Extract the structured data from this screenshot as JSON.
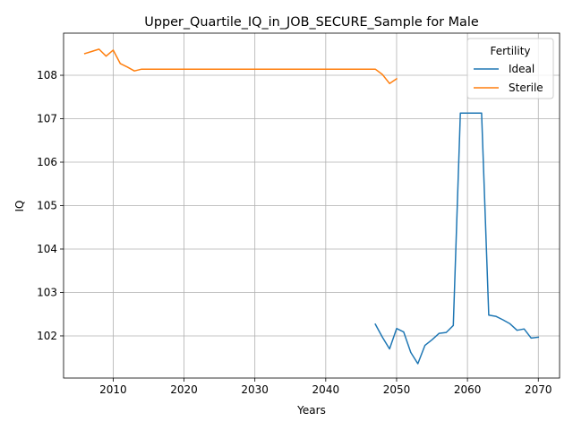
{
  "chart_data": {
    "type": "line",
    "title": "Upper_Quartile_IQ_in_JOB_SECURE_Sample for Male",
    "xlabel": "Years",
    "ylabel": "IQ",
    "xlim": [
      2003,
      2073
    ],
    "ylim": [
      101.03,
      108.97
    ],
    "xticks": [
      2010,
      2020,
      2030,
      2040,
      2050,
      2060,
      2070
    ],
    "yticks": [
      102,
      103,
      104,
      105,
      106,
      107,
      108
    ],
    "grid": true,
    "legend": {
      "title": "Fertility",
      "position": "top-right"
    },
    "series": [
      {
        "name": "Ideal",
        "color": "#1f77b4",
        "x": [
          2047,
          2048,
          2049,
          2050,
          2051,
          2052,
          2053,
          2054,
          2055,
          2056,
          2057,
          2058,
          2059,
          2060,
          2061,
          2062,
          2063,
          2064,
          2065,
          2066,
          2067,
          2068,
          2069,
          2070
        ],
        "y": [
          102.27,
          101.97,
          101.7,
          102.17,
          102.09,
          101.62,
          101.36,
          101.78,
          101.91,
          102.06,
          102.08,
          102.24,
          107.13,
          107.13,
          107.13,
          107.13,
          102.48,
          102.45,
          102.37,
          102.28,
          102.13,
          102.16,
          101.95,
          101.97
        ]
      },
      {
        "name": "Sterile",
        "color": "#ff7f0e",
        "x": [
          2006,
          2007,
          2008,
          2009,
          2010,
          2011,
          2012,
          2013,
          2014,
          2015,
          2020,
          2025,
          2030,
          2035,
          2040,
          2045,
          2047,
          2048,
          2049,
          2050
        ],
        "y": [
          108.5,
          108.55,
          108.6,
          108.44,
          108.58,
          108.27,
          108.19,
          108.1,
          108.14,
          108.14,
          108.14,
          108.14,
          108.14,
          108.14,
          108.14,
          108.14,
          108.14,
          108.02,
          107.81,
          107.92
        ]
      }
    ]
  }
}
